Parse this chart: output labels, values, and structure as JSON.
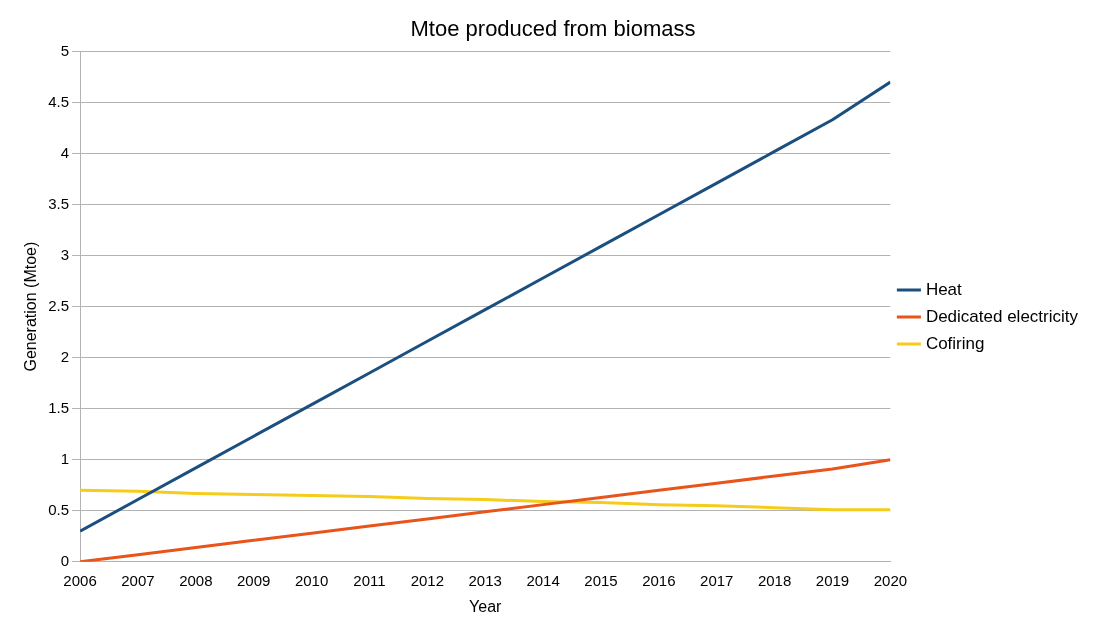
{
  "chart_data": {
    "type": "line",
    "title": "Mtoe produced from biomass",
    "xlabel": "Year",
    "ylabel": "Generation (Mtoe)",
    "x": [
      2006,
      2007,
      2008,
      2009,
      2010,
      2011,
      2012,
      2013,
      2014,
      2015,
      2016,
      2017,
      2018,
      2019,
      2020
    ],
    "series": [
      {
        "name": "Heat",
        "color": "#1b4f7f",
        "values": [
          0.3,
          0.61,
          0.92,
          1.23,
          1.54,
          1.85,
          2.16,
          2.47,
          2.78,
          3.09,
          3.4,
          3.71,
          4.02,
          4.33,
          4.7
        ]
      },
      {
        "name": "Dedicated electricity",
        "color": "#e8541b",
        "values": [
          0,
          0.07,
          0.14,
          0.21,
          0.28,
          0.35,
          0.42,
          0.49,
          0.56,
          0.63,
          0.7,
          0.77,
          0.84,
          0.91,
          1.0
        ]
      },
      {
        "name": "Cofiring",
        "color": "#f5cc1a",
        "values": [
          0.7,
          0.69,
          0.67,
          0.66,
          0.65,
          0.64,
          0.62,
          0.61,
          0.59,
          0.58,
          0.56,
          0.55,
          0.53,
          0.51,
          0.51
        ]
      }
    ],
    "xlim": [
      2006,
      2020
    ],
    "xticks": [
      2006,
      2007,
      2008,
      2009,
      2010,
      2011,
      2012,
      2013,
      2014,
      2015,
      2016,
      2017,
      2018,
      2019,
      2020
    ],
    "ylim": [
      0,
      5
    ],
    "yticks": [
      0,
      0.5,
      1,
      1.5,
      2,
      2.5,
      3,
      3.5,
      4,
      4.5,
      5
    ],
    "grid": "y",
    "legend": "right",
    "marker": "none",
    "line_style": "solid"
  }
}
